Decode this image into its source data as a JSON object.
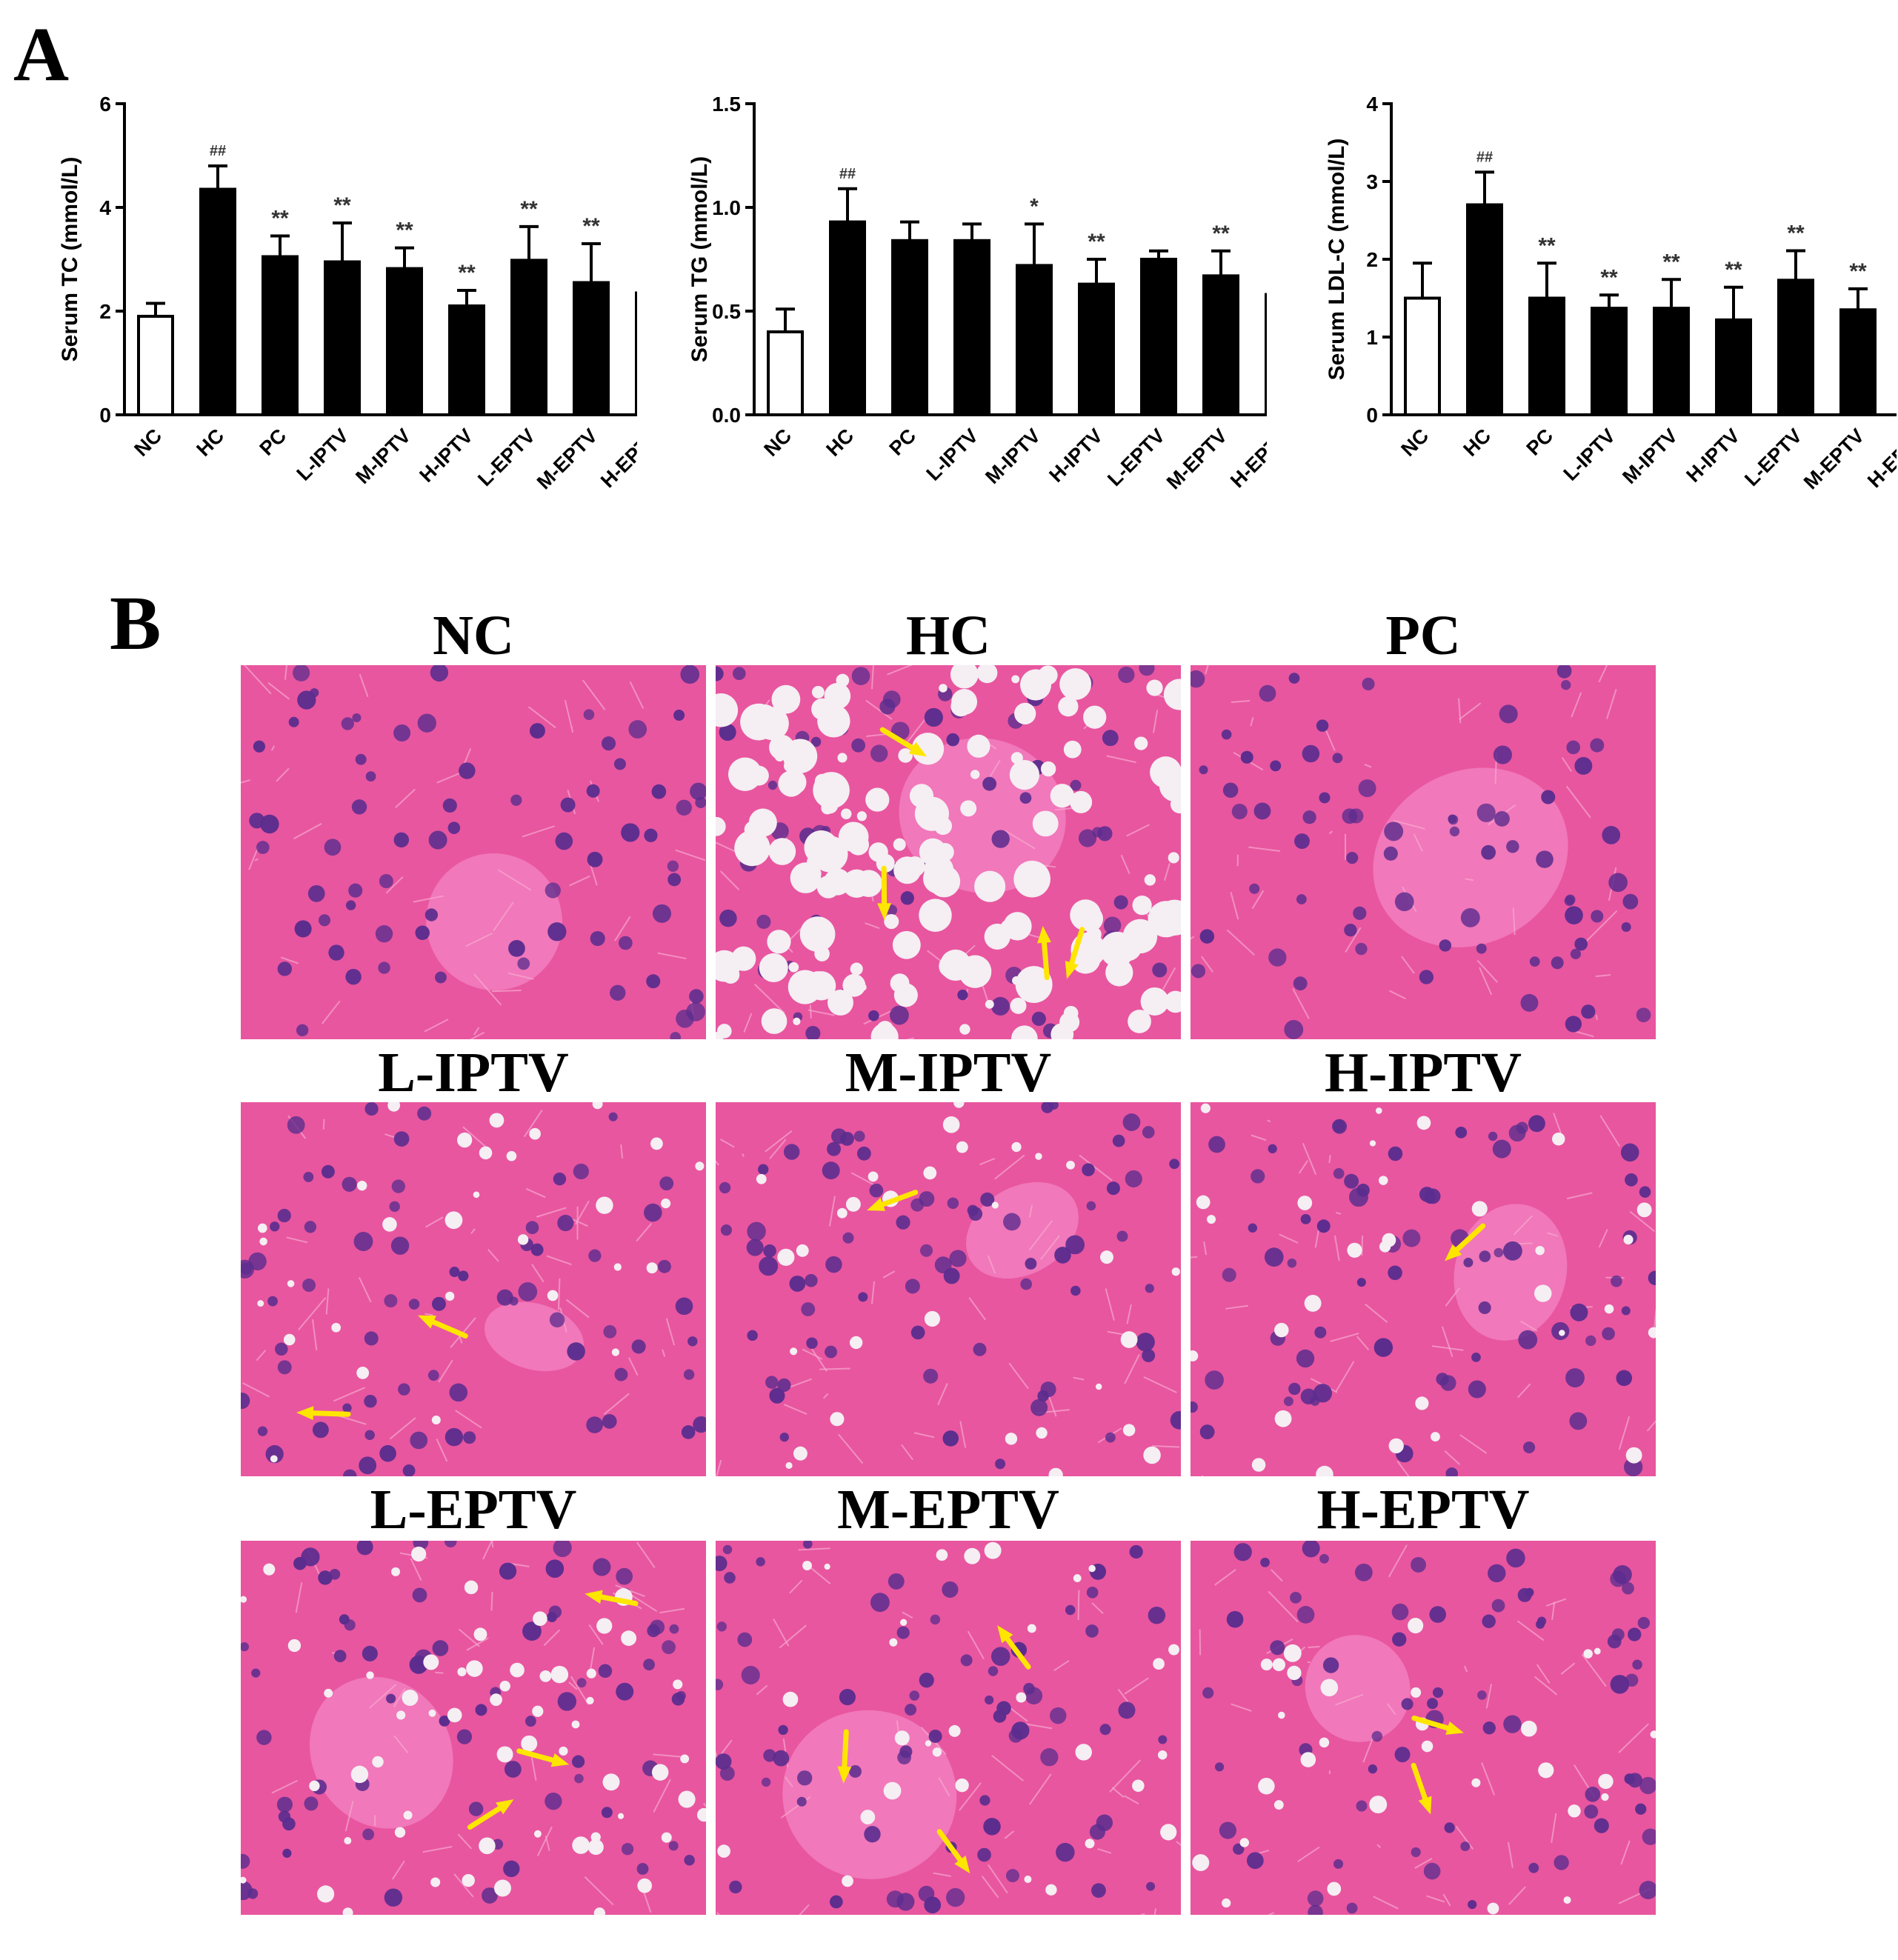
{
  "panel_a_label": "A",
  "panel_b_label": "B",
  "colors": {
    "bar_fill": "#000000",
    "control_fill": "#ffffff",
    "sig_text": "#333333",
    "tissue_bg": "#e8569f",
    "tissue_light": "#f27cbd",
    "nuclei": "#5b2d8e",
    "vacuole": "#f5eef3",
    "arrow": "#ffe600"
  },
  "chart_data": [
    {
      "type": "bar",
      "categories": [
        "NC",
        "HC",
        "PC",
        "L-IPTV",
        "M-IPTV",
        "H-IPTV",
        "L-EPTV",
        "M-EPTV",
        "H-EPTV"
      ],
      "values": [
        1.9,
        4.35,
        3.05,
        2.95,
        2.82,
        2.1,
        2.98,
        2.55,
        2.35
      ],
      "errors": [
        0.25,
        0.45,
        0.4,
        0.75,
        0.4,
        0.3,
        0.65,
        0.75,
        0.52
      ],
      "annotations": [
        "",
        "##",
        "**",
        "**",
        "**",
        "**",
        "**",
        "**",
        "**"
      ],
      "ylabel": "Serum TC (mmol/L)",
      "ylim": [
        0,
        6
      ],
      "yticks": [
        "0",
        "2",
        "4",
        "6"
      ],
      "yticks_values": [
        0,
        2,
        4,
        6
      ]
    },
    {
      "type": "bar",
      "categories": [
        "NC",
        "HC",
        "PC",
        "L-IPTV",
        "M-IPTV",
        "H-IPTV",
        "L-EPTV",
        "M-EPTV",
        "H-EPTV"
      ],
      "values": [
        0.4,
        0.93,
        0.84,
        0.84,
        0.72,
        0.63,
        0.75,
        0.67,
        0.58
      ],
      "errors": [
        0.11,
        0.16,
        0.09,
        0.08,
        0.2,
        0.12,
        0.04,
        0.12,
        0.13
      ],
      "annotations": [
        "",
        "##",
        "",
        "",
        "*",
        "**",
        "",
        "**",
        "**"
      ],
      "ylabel": "Serum TG (mmol/L)",
      "ylim": [
        0,
        1.5
      ],
      "yticks": [
        "0.0",
        "0.5",
        "1.0",
        "1.5"
      ],
      "yticks_values": [
        0,
        0.5,
        1.0,
        1.5
      ]
    },
    {
      "type": "bar",
      "categories": [
        "NC",
        "HC",
        "PC",
        "L-IPTV",
        "M-IPTV",
        "H-IPTV",
        "L-EPTV",
        "M-EPTV",
        "H-EPTV"
      ],
      "values": [
        1.5,
        2.7,
        1.5,
        1.37,
        1.37,
        1.22,
        1.73,
        1.35,
        1.18
      ],
      "errors": [
        0.45,
        0.42,
        0.45,
        0.17,
        0.37,
        0.42,
        0.38,
        0.27,
        0.2
      ],
      "annotations": [
        "",
        "##",
        "**",
        "**",
        "**",
        "**",
        "**",
        "**",
        "**"
      ],
      "ylabel": "Serum LDL-C (mmol/L)",
      "ylim": [
        0,
        4
      ],
      "yticks": [
        "0",
        "1",
        "2",
        "3",
        "4"
      ],
      "yticks_values": [
        0,
        1,
        2,
        3,
        4
      ]
    }
  ],
  "micrographs": [
    {
      "title": "NC",
      "vacuoles": "none",
      "arrows": 0
    },
    {
      "title": "HC",
      "vacuoles": "heavy",
      "arrows": 4
    },
    {
      "title": "PC",
      "vacuoles": "none",
      "arrows": 0
    },
    {
      "title": "L-IPTV",
      "vacuoles": "light",
      "arrows": 2
    },
    {
      "title": "M-IPTV",
      "vacuoles": "light",
      "arrows": 1
    },
    {
      "title": "H-IPTV",
      "vacuoles": "light",
      "arrows": 1
    },
    {
      "title": "L-EPTV",
      "vacuoles": "moderate",
      "arrows": 3
    },
    {
      "title": "M-EPTV",
      "vacuoles": "light",
      "arrows": 3
    },
    {
      "title": "H-EPTV",
      "vacuoles": "light",
      "arrows": 2
    }
  ]
}
